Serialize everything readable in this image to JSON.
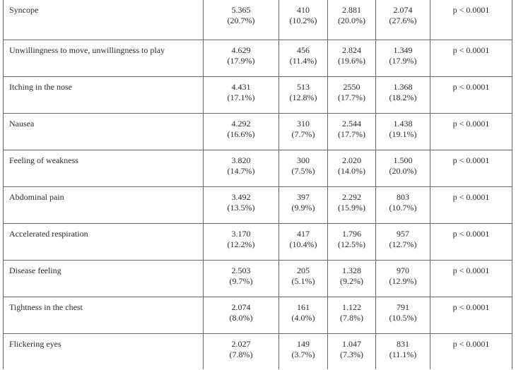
{
  "table": {
    "rows": [
      {
        "label": "Syncope",
        "cells": [
          [
            "5.365",
            "(20.7%)"
          ],
          [
            "410",
            "(10.2%)"
          ],
          [
            "2.881",
            "(20.0%)"
          ],
          [
            "2.074",
            "(27.6%)"
          ]
        ],
        "p": "p < 0.0001"
      },
      {
        "label": "Unwillingness to move, unwillingness to play",
        "cells": [
          [
            "4.629",
            "(17.9%)"
          ],
          [
            "456",
            "(11.4%)"
          ],
          [
            "2.824",
            "(19.6%)"
          ],
          [
            "1.349",
            "(17.9%)"
          ]
        ],
        "p": "p < 0.0001"
      },
      {
        "label": "Itching in the nose",
        "cells": [
          [
            "4.431",
            "(17.1%)"
          ],
          [
            "513",
            "(12.8%)"
          ],
          [
            "2550",
            "(17.7%)"
          ],
          [
            "1.368",
            "(18.2%)"
          ]
        ],
        "p": "p < 0.0001"
      },
      {
        "label": "Nausea",
        "cells": [
          [
            "4.292",
            "(16.6%)"
          ],
          [
            "310",
            "(7.7%)"
          ],
          [
            "2.544",
            "(17.7%)"
          ],
          [
            "1.438",
            "(19.1%)"
          ]
        ],
        "p": "p < 0.0001"
      },
      {
        "label": "Feeling of weakness",
        "cells": [
          [
            "3.820",
            "(14.7%)"
          ],
          [
            "300",
            "(7.5%)"
          ],
          [
            "2.020",
            "(14.0%)"
          ],
          [
            "1.500",
            "(20.0%)"
          ]
        ],
        "p": "p < 0.0001"
      },
      {
        "label": "Abdominal pain",
        "cells": [
          [
            "3.492",
            "(13.5%)"
          ],
          [
            "397",
            "(9.9%)"
          ],
          [
            "2.292",
            "(15.9%)"
          ],
          [
            "803",
            "(10.7%)"
          ]
        ],
        "p": "p < 0.0001"
      },
      {
        "label": "Accelerated respiration",
        "cells": [
          [
            "3.170",
            "(12.2%)"
          ],
          [
            "417",
            "(10.4%)"
          ],
          [
            "1.796",
            "(12.5%)"
          ],
          [
            "957",
            "(12.7%)"
          ]
        ],
        "p": "p < 0.0001"
      },
      {
        "label": "Disease feeling",
        "cells": [
          [
            "2.503",
            "(9.7%)"
          ],
          [
            "205",
            "(5.1%)"
          ],
          [
            "1.328",
            "(9.2%)"
          ],
          [
            "970",
            "(12.9%)"
          ]
        ],
        "p": "p < 0.0001"
      },
      {
        "label": "Tightness in the chest",
        "cells": [
          [
            "2.074",
            "(8.0%)"
          ],
          [
            "161",
            "(4.0%)"
          ],
          [
            "1.122",
            "(7.8%)"
          ],
          [
            "791",
            "(10.5%)"
          ]
        ],
        "p": "p < 0.0001"
      },
      {
        "label": "Flickering eyes",
        "cells": [
          [
            "2.027",
            "(7.8%)"
          ],
          [
            "149",
            "(3.7%)"
          ],
          [
            "1.047",
            "(7.3%)"
          ],
          [
            "831",
            "(11.1%)"
          ]
        ],
        "p": "p < 0.0001"
      }
    ]
  }
}
